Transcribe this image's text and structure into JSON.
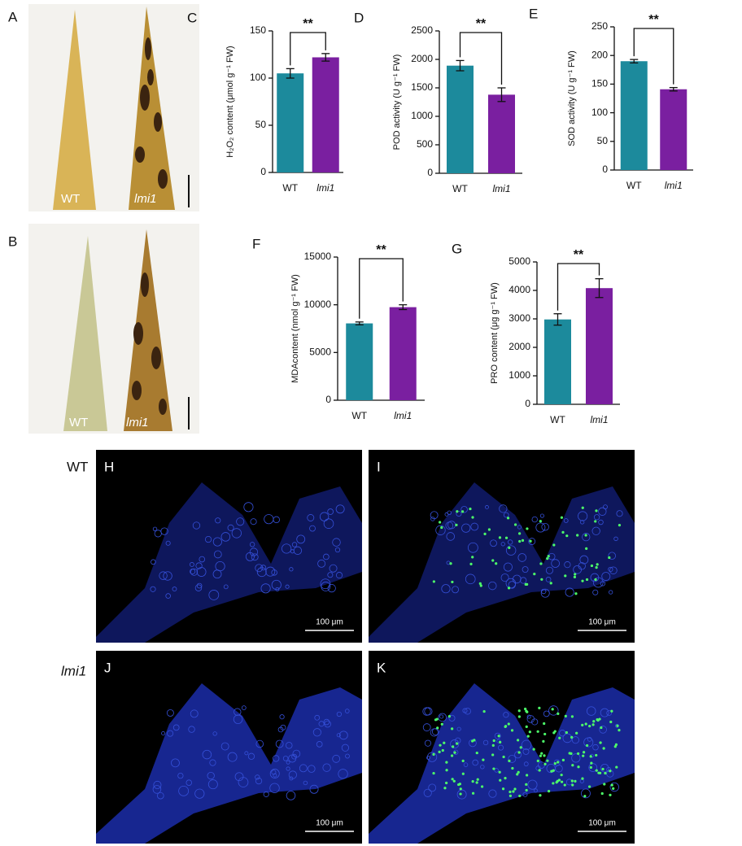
{
  "photos": [
    {
      "panel": "A",
      "labels": [
        "WT",
        "lmi1"
      ]
    },
    {
      "panel": "B",
      "labels": [
        "WT",
        "lmi1"
      ]
    }
  ],
  "chart_data": [
    {
      "type": "bar",
      "panel": "C",
      "y_label": "H₂O₂ content (μmol g⁻¹ FW)",
      "categories": [
        "WT",
        "lmi1"
      ],
      "values": [
        105,
        122
      ],
      "errors": [
        5,
        4
      ],
      "colors": [
        "#1c8a9c",
        "#7a1fa0"
      ],
      "ylim": [
        0,
        150
      ],
      "yticks": [
        0,
        50,
        100,
        150
      ],
      "annotation": "**"
    },
    {
      "type": "bar",
      "panel": "D",
      "y_label": "POD activity (U g⁻¹ FW)",
      "categories": [
        "WT",
        "lmi1"
      ],
      "values": [
        1890,
        1380
      ],
      "errors": [
        90,
        120
      ],
      "colors": [
        "#1c8a9c",
        "#7a1fa0"
      ],
      "ylim": [
        0,
        2500
      ],
      "yticks": [
        0,
        500,
        1000,
        1500,
        2000,
        2500
      ],
      "annotation": "**"
    },
    {
      "type": "bar",
      "panel": "E",
      "y_label": "SOD activity (U g⁻¹ FW)",
      "categories": [
        "WT",
        "lmi1"
      ],
      "values": [
        190,
        141
      ],
      "errors": [
        3,
        3
      ],
      "colors": [
        "#1c8a9c",
        "#7a1fa0"
      ],
      "ylim": [
        0,
        250
      ],
      "yticks": [
        0,
        50,
        100,
        150,
        200,
        250
      ],
      "annotation": "**"
    },
    {
      "type": "bar",
      "panel": "F",
      "y_label": "MDAcontent (nmol g⁻¹ FW)",
      "categories": [
        "WT",
        "lmi1"
      ],
      "values": [
        8050,
        9750
      ],
      "errors": [
        150,
        250
      ],
      "colors": [
        "#1c8a9c",
        "#7a1fa0"
      ],
      "ylim": [
        0,
        15000
      ],
      "yticks": [
        0,
        5000,
        10000,
        15000
      ],
      "annotation": "**"
    },
    {
      "type": "bar",
      "panel": "G",
      "y_label": "PRO content (μg g⁻¹ FW)",
      "categories": [
        "WT",
        "lmi1"
      ],
      "values": [
        2980,
        4080
      ],
      "errors": [
        200,
        330
      ],
      "colors": [
        "#1c8a9c",
        "#7a1fa0"
      ],
      "ylim": [
        0,
        5000
      ],
      "yticks": [
        0,
        1000,
        2000,
        3000,
        4000,
        5000
      ],
      "annotation": "**"
    }
  ],
  "micrographs": {
    "row_labels": [
      "WT",
      "lmi1"
    ],
    "panels": [
      "H",
      "I",
      "J",
      "K"
    ],
    "scale_bar": "100 μm"
  }
}
